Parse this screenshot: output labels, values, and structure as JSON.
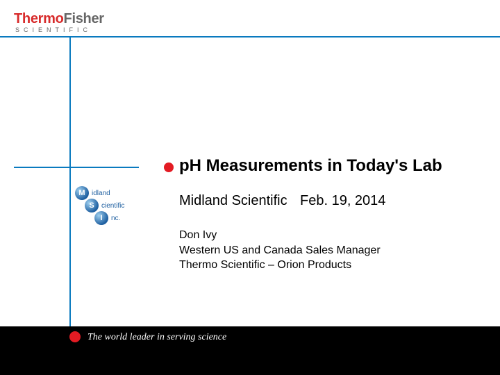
{
  "logo": {
    "thermo": "Thermo",
    "fisher": "Fisher",
    "scientific": "SCIENTIFIC"
  },
  "colors": {
    "blue": "#0a7abf",
    "red": "#e31b23",
    "thermo_red": "#d82b2b",
    "fisher_gray": "#666666",
    "black": "#000000",
    "white": "#ffffff"
  },
  "msi": {
    "m": "M",
    "m_word": "idland",
    "s": "S",
    "s_word": "cientific",
    "i": "I",
    "i_word": "nc."
  },
  "title": "pH Measurements in Today's Lab",
  "subtitle_org": "Midland Scientific",
  "subtitle_date": "Feb. 19, 2014",
  "presenter_name": "Don Ivy",
  "presenter_role": "Western US and Canada Sales Manager",
  "presenter_product": "Thermo Scientific – Orion Products",
  "footer_tagline": "The world leader in serving science"
}
